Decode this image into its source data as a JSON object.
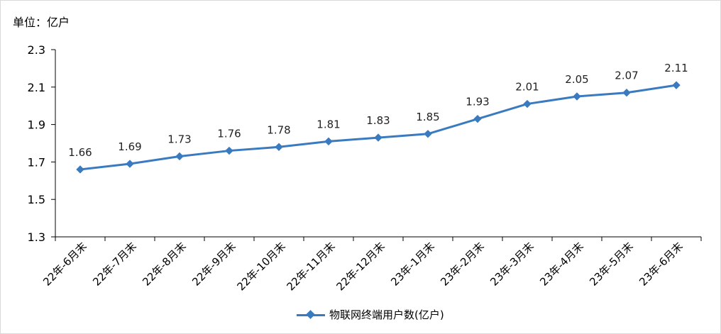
{
  "unit_label": "单位：亿户",
  "colors": {
    "series": "#3A7BC0",
    "axis": "#000000"
  },
  "chart_data": {
    "type": "line",
    "title": "",
    "xlabel": "",
    "ylabel": "",
    "ylim": [
      1.3,
      2.3
    ],
    "yticks": [
      "1.3",
      "1.5",
      "1.7",
      "1.9",
      "2.1",
      "2.3"
    ],
    "grid": false,
    "legend_position": "bottom",
    "categories": [
      "22年-6月末",
      "22年-7月末",
      "22年-8月末",
      "22年-9月末",
      "22年-10月末",
      "22年-11月末",
      "22年-12月末",
      "23年-1月末",
      "23年-2月末",
      "23年-3月末",
      "23年-4月末",
      "23年-5月末",
      "23年-6月末"
    ],
    "series": [
      {
        "name": "物联网终端用户数(亿户)",
        "values": [
          1.66,
          1.69,
          1.73,
          1.76,
          1.78,
          1.81,
          1.83,
          1.85,
          1.93,
          2.01,
          2.05,
          2.07,
          2.11
        ],
        "labels": [
          "1.66",
          "1.69",
          "1.73",
          "1.76",
          "1.78",
          "1.81",
          "1.83",
          "1.85",
          "1.93",
          "2.01",
          "2.05",
          "2.07",
          "2.11"
        ]
      }
    ]
  }
}
